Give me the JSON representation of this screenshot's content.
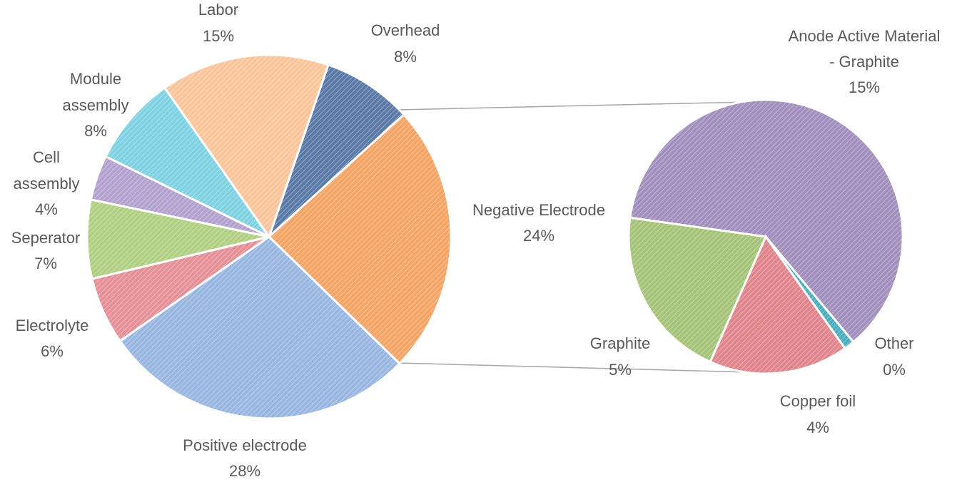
{
  "chart_data": [
    {
      "type": "pie",
      "title": "",
      "slices": [
        {
          "name": "Overhead",
          "value": 8,
          "label": "8%",
          "color": "#5b7aa8"
        },
        {
          "name": "Negative Electrode",
          "value": 24,
          "label": "24%",
          "color": "#f4a465"
        },
        {
          "name": "Positive electrode",
          "value": 28,
          "label": "28%",
          "color": "#9ab7e2"
        },
        {
          "name": "Electrolyte",
          "value": 6,
          "label": "6%",
          "color": "#e58f96"
        },
        {
          "name": "Seperator",
          "value": 7,
          "label": "7%",
          "color": "#b0cf82"
        },
        {
          "name": "Cell assembly",
          "value": 4,
          "label": "4%",
          "color": "#b3a2cf"
        },
        {
          "name": "Module assembly",
          "value": 8,
          "label": "8%",
          "color": "#7fd2e3"
        },
        {
          "name": "Labor",
          "value": 15,
          "label": "15%",
          "color": "#fbc59b"
        }
      ],
      "legend": "none",
      "data_labels": "outside"
    },
    {
      "type": "pie",
      "title": "",
      "breakdown_of": "Negative Electrode",
      "slices": [
        {
          "name": "Anode Active Material - Graphite",
          "value": 15,
          "label": "15%",
          "color": "#a28fbe"
        },
        {
          "name": "Other",
          "value": 0.3,
          "label": "0%",
          "color": "#4aadc0"
        },
        {
          "name": "Copper foil",
          "value": 4,
          "label": "4%",
          "color": "#e0858b"
        },
        {
          "name": "Graphite",
          "value": 5,
          "label": "5%",
          "color": "#a6c479"
        }
      ],
      "legend": "none",
      "data_labels": "outside"
    }
  ]
}
